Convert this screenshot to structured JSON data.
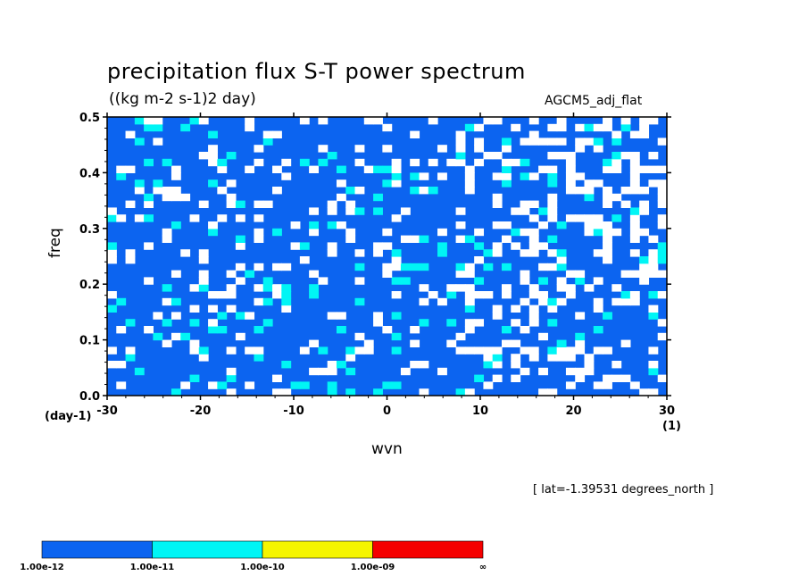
{
  "chart_data": {
    "type": "heatmap",
    "title": "precipitation flux S-T power spectrum",
    "subtitle": "((kg m-2 s-1)2 day)",
    "dataset_label": "AGCM5_adj_flat",
    "annotation": "[ lat=-1.39531 degrees_north ]",
    "xlabel": "wvn",
    "ylabel": "freq",
    "x_unit": "(1)",
    "y_unit": "(day-1)",
    "xlim": [
      -30,
      30
    ],
    "ylim": [
      0.0,
      0.5
    ],
    "x_ticks": [
      -30,
      -20,
      -10,
      0,
      10,
      20,
      30
    ],
    "y_ticks": [
      "0.0",
      "0.1",
      "0.2",
      "0.3",
      "0.4",
      "0.5"
    ],
    "grid": false,
    "colorbar": {
      "position": "bottom-left",
      "levels": [
        "1.00e-12",
        "1.00e-11",
        "1.00e-10",
        "1.00e-09",
        "∞"
      ],
      "colors": [
        "#0c64f0",
        "#00f5f5",
        "#f5f500",
        "#f50000"
      ],
      "below_color": "#ffffff"
    }
  },
  "colors": {
    "band_1e12": "#0c64f0",
    "band_1e11": "#00f5f5",
    "band_1e10": "#f5f500",
    "band_1e09": "#f50000",
    "below": "#ffffff"
  }
}
